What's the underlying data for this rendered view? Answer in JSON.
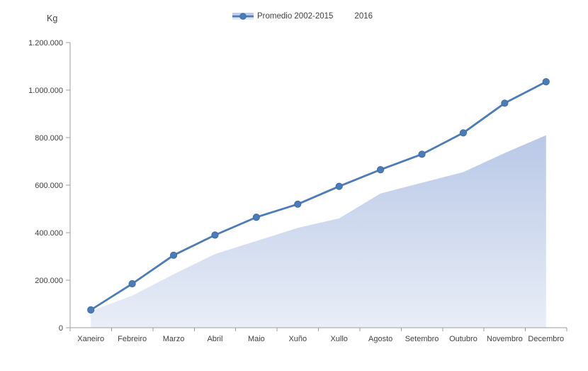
{
  "chart_data": {
    "type": "area+line combo",
    "title": "",
    "ylabel": "Kg",
    "xlabel": "",
    "ylim": [
      0,
      1200000
    ],
    "grid": false,
    "legend_position": "top",
    "categories": [
      "Xaneiro",
      "Febreiro",
      "Marzo",
      "Abril",
      "Maio",
      "Xuño",
      "Xullo",
      "Agosto",
      "Setembro",
      "Outubro",
      "Novembro",
      "Decembro"
    ],
    "y_ticks": [
      {
        "value": 0,
        "label": "0"
      },
      {
        "value": 200000,
        "label": "200.000"
      },
      {
        "value": 400000,
        "label": "400.000"
      },
      {
        "value": 600000,
        "label": "600.000"
      },
      {
        "value": 800000,
        "label": "800.000"
      },
      {
        "value": 1000000,
        "label": "1.000.000"
      },
      {
        "value": 1200000,
        "label": "1.200.000"
      }
    ],
    "series": [
      {
        "name": "Promedio 2002-2015",
        "type": "area",
        "values": [
          70000,
          135000,
          225000,
          310000,
          365000,
          420000,
          460000,
          565000,
          610000,
          655000,
          735000,
          810000
        ],
        "fill_top": "#b9c8e7",
        "fill_bottom": "#e9eef7"
      },
      {
        "name": "2016",
        "type": "line",
        "values": [
          75000,
          185000,
          305000,
          390000,
          465000,
          520000,
          595000,
          665000,
          730000,
          820000,
          945000,
          1035000
        ],
        "color": "#4c7cb8",
        "marker_stroke": "#3e6ca6"
      }
    ],
    "colors": {
      "axis": "#9d9d9d",
      "text": "#404040",
      "background": "#ffffff"
    }
  }
}
